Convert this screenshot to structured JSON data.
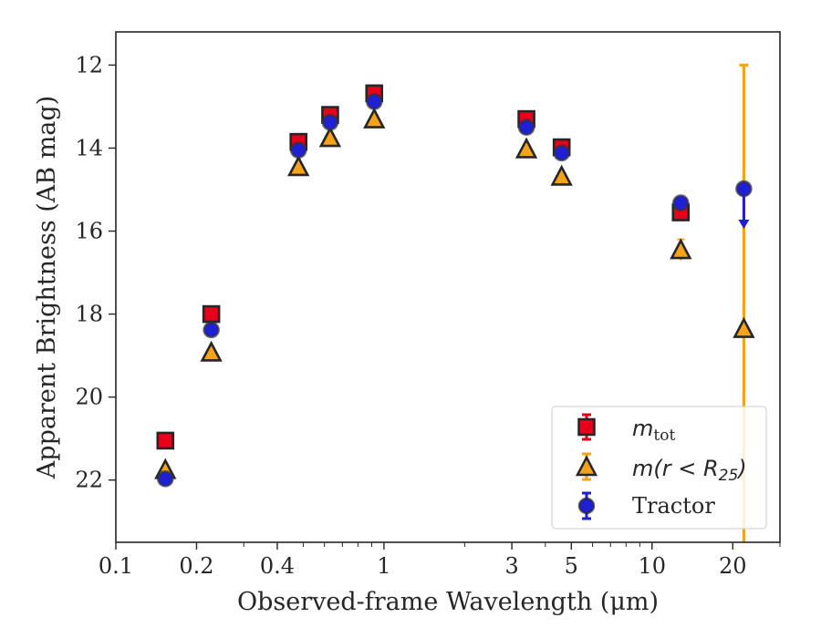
{
  "chart_data": {
    "type": "scatter",
    "xlabel": "Observed-frame Wavelength (μm)",
    "ylabel": "Apparent Brightness (AB mag)",
    "xscale": "log",
    "xlim": [
      0.1,
      30
    ],
    "ylim": [
      23.5,
      11.2
    ],
    "y_inverted": true,
    "x_ticks": [
      0.1,
      0.2,
      0.4,
      1,
      3,
      5,
      10,
      20
    ],
    "x_tick_labels": [
      "0.1",
      "0.2",
      "0.4",
      "1",
      "3",
      "5",
      "10",
      "20"
    ],
    "y_ticks": [
      12,
      14,
      16,
      18,
      20,
      22
    ],
    "y_tick_labels": [
      "12",
      "14",
      "16",
      "18",
      "20",
      "22"
    ],
    "grid": false,
    "legend_position": "lower-right",
    "series": [
      {
        "name": "m_tot",
        "legend_main": "m",
        "legend_sub": "tot",
        "marker": "square",
        "color": "#e8001a",
        "points": [
          {
            "x": 0.153,
            "y": 21.05
          },
          {
            "x": 0.227,
            "y": 18.0
          },
          {
            "x": 0.48,
            "y": 13.85
          },
          {
            "x": 0.63,
            "y": 13.2
          },
          {
            "x": 0.92,
            "y": 12.68
          },
          {
            "x": 3.4,
            "y": 13.3
          },
          {
            "x": 4.6,
            "y": 13.98
          },
          {
            "x": 12.8,
            "y": 15.55
          }
        ]
      },
      {
        "name": "m(r < R25)",
        "legend_main": "m(r < R",
        "legend_sub": "25",
        "legend_close": ")",
        "marker": "triangle",
        "color": "#f5a31a",
        "points": [
          {
            "x": 0.153,
            "y": 21.75
          },
          {
            "x": 0.227,
            "y": 18.92
          },
          {
            "x": 0.48,
            "y": 14.45
          },
          {
            "x": 0.63,
            "y": 13.75
          },
          {
            "x": 0.92,
            "y": 13.3
          },
          {
            "x": 3.4,
            "y": 14.02
          },
          {
            "x": 4.6,
            "y": 14.68
          },
          {
            "x": 12.8,
            "y": 16.45,
            "yerr": 0.25
          },
          {
            "x": 22.0,
            "y": 18.35,
            "err_low": 12.0,
            "err_high": 23.5
          }
        ]
      },
      {
        "name": "Tractor",
        "legend_main": "Tractor",
        "marker": "circle",
        "color": "#1f1fd6",
        "points": [
          {
            "x": 0.153,
            "y": 21.97
          },
          {
            "x": 0.227,
            "y": 18.38
          },
          {
            "x": 0.48,
            "y": 14.05
          },
          {
            "x": 0.63,
            "y": 13.38
          },
          {
            "x": 0.92,
            "y": 12.88
          },
          {
            "x": 3.4,
            "y": 13.5
          },
          {
            "x": 4.6,
            "y": 14.12
          },
          {
            "x": 12.8,
            "y": 15.32
          },
          {
            "x": 22.0,
            "y": 14.98,
            "upper_limit_to": 15.9
          }
        ]
      }
    ]
  }
}
